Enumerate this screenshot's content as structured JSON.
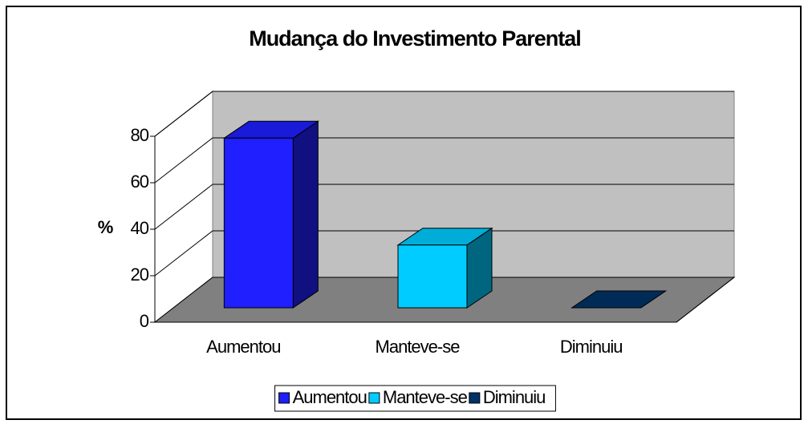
{
  "chart_data": {
    "type": "bar3d",
    "title": "Mudança do Investimento Parental",
    "y_label": "%",
    "categories": [
      "Aumentou",
      "Manteve-se",
      "Diminuiu"
    ],
    "values": [
      73,
      27,
      0
    ],
    "colors": [
      "#1f1fff",
      "#00ccff",
      "#003366"
    ],
    "ylim": [
      0,
      80
    ],
    "yticks": [
      0,
      20,
      40,
      60,
      80
    ],
    "grid": true,
    "legend": "bottom"
  }
}
